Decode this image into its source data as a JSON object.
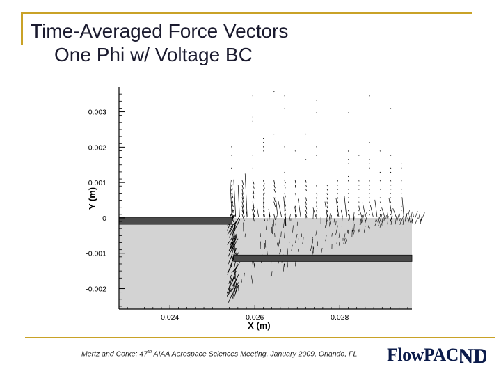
{
  "slide": {
    "title_line1": "Time-Averaged Force Vectors",
    "title_line2": "One Phi w/ Voltage BC",
    "footer_pre": "Mertz and Corke: 47",
    "footer_sup": "th",
    "footer_post": " AIAA Aerospace Sciences Meeting, January 2009, Orlando, FL",
    "logo_text": "FlowPAC",
    "logo_mark": "ND",
    "accent_color": "#c9a227",
    "dielectric_color": "#d3d3d3",
    "electrode_color": "#4a4a4a"
  },
  "chart_data": {
    "type": "vector-field",
    "xlabel": "X (m)",
    "ylabel": "Y (m)",
    "xlim": [
      0.0228,
      0.0297
    ],
    "ylim": [
      -0.00258,
      0.0037
    ],
    "x_ticks": [
      0.024,
      0.026,
      0.028
    ],
    "x_tick_labels": [
      "0.024",
      "0.026",
      "0.028"
    ],
    "y_ticks": [
      0.003,
      0.002,
      0.001,
      0,
      -0.001,
      -0.002
    ],
    "y_tick_labels": [
      "0.003",
      "0.002",
      "0.001",
      "0",
      "-0.001",
      "-0.002"
    ],
    "regions": {
      "dielectric_top_y": 0,
      "upper_electrode": {
        "x_start": 0.0228,
        "x_end": 0.02546,
        "y_bottom": -0.00018,
        "y_top": 2e-05
      },
      "lower_electrode": {
        "x_start": 0.0255,
        "x_end": 0.0297,
        "y_bottom": -0.00123,
        "y_top": -0.00105
      }
    },
    "grid": false
  }
}
